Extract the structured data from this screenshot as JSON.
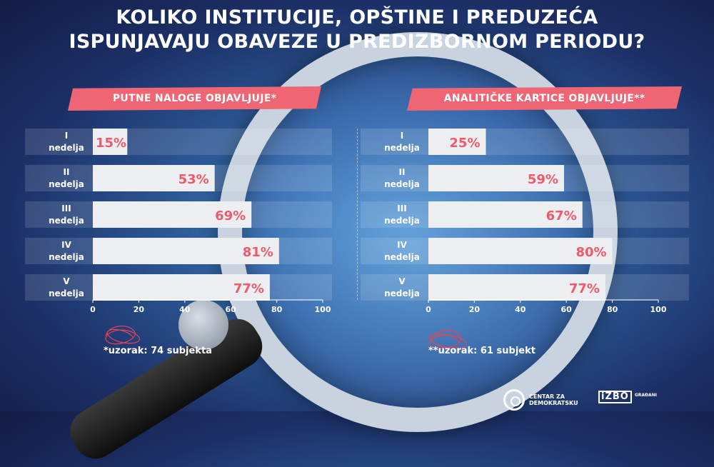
{
  "title": {
    "line1": "KOLIKO INSTITUCIJE, OPŠTINE I PREDUZEĆA",
    "line2": "ISPUNJAVAJU OBAVEZE U PREDIZBORNOM PERIODU?"
  },
  "colors": {
    "accent": "#f06574",
    "bar": "#eceef1",
    "value_text": "#f05a6a"
  },
  "notes": {
    "left": "*uzorak: 74 subjekta",
    "right": "**uzorak: 61 subjekt"
  },
  "logos": {
    "cdt_lines": [
      "CENTAR ZA",
      "DEMOKRATSKU"
    ],
    "izbori_box": "iZBO",
    "izbori_small": "GRAĐANI"
  },
  "chart_data": [
    {
      "type": "bar",
      "orientation": "horizontal",
      "title": "PUTNE NALOGE OBJAVLJUJE*",
      "categories": [
        [
          "I",
          "nedelja"
        ],
        [
          "II",
          "nedelja"
        ],
        [
          "III",
          "nedelja"
        ],
        [
          "IV",
          "nedelja"
        ],
        [
          "V",
          "nedelja"
        ]
      ],
      "values": [
        15,
        53,
        69,
        81,
        77
      ],
      "value_labels": [
        "15%",
        "53%",
        "69%",
        "81%",
        "77%"
      ],
      "xlim": [
        0,
        100
      ],
      "xticks": [
        "0",
        "20",
        "40",
        "60",
        "80",
        "100"
      ],
      "unit": "%"
    },
    {
      "type": "bar",
      "orientation": "horizontal",
      "title": "ANALITIČKE KARTICE OBJAVLJUJE**",
      "categories": [
        [
          "I",
          "nedelja"
        ],
        [
          "II",
          "nedelja"
        ],
        [
          "III",
          "nedelja"
        ],
        [
          "IV",
          "nedelja"
        ],
        [
          "V",
          "nedelja"
        ]
      ],
      "values": [
        25,
        59,
        67,
        80,
        77
      ],
      "value_labels": [
        "25%",
        "59%",
        "67%",
        "80%",
        "77%"
      ],
      "xlim": [
        0,
        100
      ],
      "xticks": [
        "0",
        "20",
        "40",
        "60",
        "80",
        "100"
      ],
      "unit": "%"
    }
  ]
}
